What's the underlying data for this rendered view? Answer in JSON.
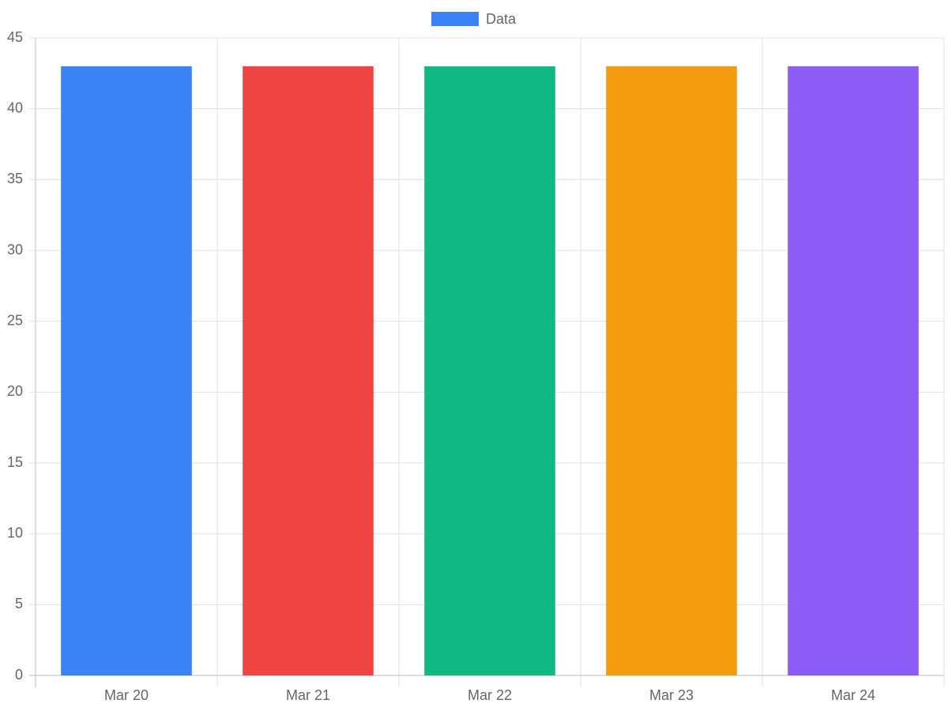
{
  "chart_data": {
    "type": "bar",
    "categories": [
      "Mar 20",
      "Mar 21",
      "Mar 22",
      "Mar 23",
      "Mar 24"
    ],
    "series": [
      {
        "name": "Data",
        "colors": [
          "#3b82f6",
          "#ef4444",
          "#10b981",
          "#f39c0f",
          "#8b5cf6"
        ],
        "values": [
          43,
          43,
          43,
          43,
          43
        ]
      }
    ],
    "ylim": [
      0,
      45
    ],
    "yticks": [
      0,
      5,
      10,
      15,
      20,
      25,
      30,
      35,
      40,
      45
    ],
    "grid": true,
    "legend": "top"
  }
}
